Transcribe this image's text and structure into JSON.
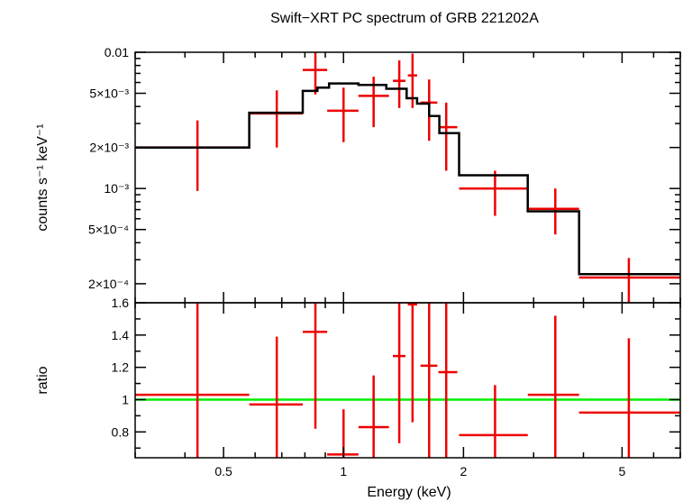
{
  "title": "Swift−XRT PC spectrum of GRB 221202A",
  "colors": {
    "data": "#ee0000",
    "model": "#000000",
    "unity": "#00ee00",
    "frame": "#000000"
  },
  "chart_data": [
    {
      "type": "scatter",
      "name": "spectrum",
      "xscale": "log",
      "yscale": "log",
      "xlim": [
        0.3,
        7.0
      ],
      "ylim": [
        0.000145,
        0.01
      ],
      "ylabel": "counts s⁻¹ keV⁻¹",
      "yticks": [
        {
          "value": 0.01,
          "label": "0.01"
        },
        {
          "value": 0.005,
          "label": "5×10⁻³"
        },
        {
          "value": 0.002,
          "label": "2×10⁻³"
        },
        {
          "value": 0.001,
          "label": "10⁻³"
        },
        {
          "value": 0.0005,
          "label": "5×10⁻⁴"
        },
        {
          "value": 0.0002,
          "label": "2×10⁻⁴"
        }
      ],
      "data_points": [
        {
          "x": 0.43,
          "xlo": 0.3,
          "xhi": 0.58,
          "y": 0.002,
          "ylo": 0.00096,
          "yhi": 0.00316
        },
        {
          "x": 0.68,
          "xlo": 0.58,
          "xhi": 0.79,
          "y": 0.00356,
          "ylo": 0.002,
          "yhi": 0.00525
        },
        {
          "x": 0.85,
          "xlo": 0.79,
          "xhi": 0.91,
          "y": 0.00741,
          "ylo": 0.0049,
          "yhi": 0.01
        },
        {
          "x": 1.0,
          "xlo": 0.91,
          "xhi": 1.09,
          "y": 0.00372,
          "ylo": 0.00219,
          "yhi": 0.0055
        },
        {
          "x": 1.19,
          "xlo": 1.09,
          "xhi": 1.3,
          "y": 0.00479,
          "ylo": 0.00282,
          "yhi": 0.00661
        },
        {
          "x": 1.38,
          "xlo": 1.33,
          "xhi": 1.43,
          "y": 0.00617,
          "ylo": 0.0039,
          "yhi": 0.00871
        },
        {
          "x": 1.49,
          "xlo": 1.45,
          "xhi": 1.53,
          "y": 0.00676,
          "ylo": 0.0039,
          "yhi": 0.00977
        },
        {
          "x": 1.64,
          "xlo": 1.56,
          "xhi": 1.72,
          "y": 0.00427,
          "ylo": 0.00224,
          "yhi": 0.00631
        },
        {
          "x": 1.81,
          "xlo": 1.73,
          "xhi": 1.93,
          "y": 0.00282,
          "ylo": 0.00135,
          "yhi": 0.00427
        },
        {
          "x": 2.4,
          "xlo": 1.95,
          "xhi": 2.9,
          "y": 0.001,
          "ylo": 0.00063,
          "yhi": 0.00135
        },
        {
          "x": 3.4,
          "xlo": 2.9,
          "xhi": 3.9,
          "y": 0.00071,
          "ylo": 0.00046,
          "yhi": 0.001
        },
        {
          "x": 5.2,
          "xlo": 3.9,
          "xhi": 7.0,
          "y": 0.000222,
          "ylo": 0.000145,
          "yhi": 0.000309
        }
      ],
      "model_steps": [
        {
          "xlo": 0.3,
          "xhi": 0.58,
          "y": 0.002
        },
        {
          "xlo": 0.58,
          "xhi": 0.79,
          "y": 0.0036
        },
        {
          "xlo": 0.79,
          "xhi": 0.86,
          "y": 0.0052
        },
        {
          "xlo": 0.86,
          "xhi": 0.92,
          "y": 0.0055
        },
        {
          "xlo": 0.92,
          "xhi": 1.09,
          "y": 0.0059
        },
        {
          "xlo": 1.09,
          "xhi": 1.28,
          "y": 0.00575
        },
        {
          "xlo": 1.28,
          "xhi": 1.44,
          "y": 0.0054
        },
        {
          "xlo": 1.44,
          "xhi": 1.53,
          "y": 0.0046
        },
        {
          "xlo": 1.53,
          "xhi": 1.64,
          "y": 0.0042
        },
        {
          "xlo": 1.64,
          "xhi": 1.74,
          "y": 0.0034
        },
        {
          "xlo": 1.74,
          "xhi": 1.95,
          "y": 0.00255
        },
        {
          "xlo": 1.95,
          "xhi": 2.9,
          "y": 0.00125
        },
        {
          "xlo": 2.9,
          "xhi": 3.9,
          "y": 0.00068
        },
        {
          "xlo": 3.9,
          "xhi": 7.0,
          "y": 0.000235
        }
      ]
    },
    {
      "type": "scatter",
      "name": "ratio",
      "xscale": "log",
      "yscale": "linear",
      "xlim": [
        0.3,
        7.0
      ],
      "ylim": [
        0.64,
        1.6
      ],
      "xlabel": "Energy (keV)",
      "ylabel": "ratio",
      "xticks": [
        {
          "value": 0.5,
          "label": "0.5"
        },
        {
          "value": 1,
          "label": "1"
        },
        {
          "value": 2,
          "label": "2"
        },
        {
          "value": 5,
          "label": "5"
        }
      ],
      "yticks": [
        {
          "value": 1.6,
          "label": "1.6"
        },
        {
          "value": 1.4,
          "label": "1.4"
        },
        {
          "value": 1.2,
          "label": "1.2"
        },
        {
          "value": 1.0,
          "label": "1"
        },
        {
          "value": 0.8,
          "label": "0.8"
        }
      ],
      "reference_line": 1.0,
      "data_points": [
        {
          "x": 0.43,
          "xlo": 0.3,
          "xhi": 0.58,
          "y": 1.03,
          "ylo": 0.64,
          "yhi": 1.6
        },
        {
          "x": 0.68,
          "xlo": 0.58,
          "xhi": 0.79,
          "y": 0.97,
          "ylo": 0.64,
          "yhi": 1.39
        },
        {
          "x": 0.85,
          "xlo": 0.79,
          "xhi": 0.91,
          "y": 1.42,
          "ylo": 0.82,
          "yhi": 1.6
        },
        {
          "x": 1.0,
          "xlo": 0.91,
          "xhi": 1.09,
          "y": 0.66,
          "ylo": 0.64,
          "yhi": 0.94
        },
        {
          "x": 1.19,
          "xlo": 1.09,
          "xhi": 1.3,
          "y": 0.83,
          "ylo": 0.64,
          "yhi": 1.15
        },
        {
          "x": 1.38,
          "xlo": 1.33,
          "xhi": 1.43,
          "y": 1.27,
          "ylo": 0.73,
          "yhi": 1.6
        },
        {
          "x": 1.49,
          "xlo": 1.45,
          "xhi": 1.53,
          "y": 1.59,
          "ylo": 0.86,
          "yhi": 1.6
        },
        {
          "x": 1.64,
          "xlo": 1.56,
          "xhi": 1.72,
          "y": 1.21,
          "ylo": 0.64,
          "yhi": 1.6
        },
        {
          "x": 1.81,
          "xlo": 1.73,
          "xhi": 1.93,
          "y": 1.17,
          "ylo": 0.64,
          "yhi": 1.6
        },
        {
          "x": 2.4,
          "xlo": 1.95,
          "xhi": 2.9,
          "y": 0.78,
          "ylo": 0.64,
          "yhi": 1.09
        },
        {
          "x": 3.4,
          "xlo": 2.9,
          "xhi": 3.9,
          "y": 1.03,
          "ylo": 0.64,
          "yhi": 1.52
        },
        {
          "x": 5.2,
          "xlo": 3.9,
          "xhi": 7.0,
          "y": 0.92,
          "ylo": 0.64,
          "yhi": 1.38
        }
      ]
    }
  ]
}
